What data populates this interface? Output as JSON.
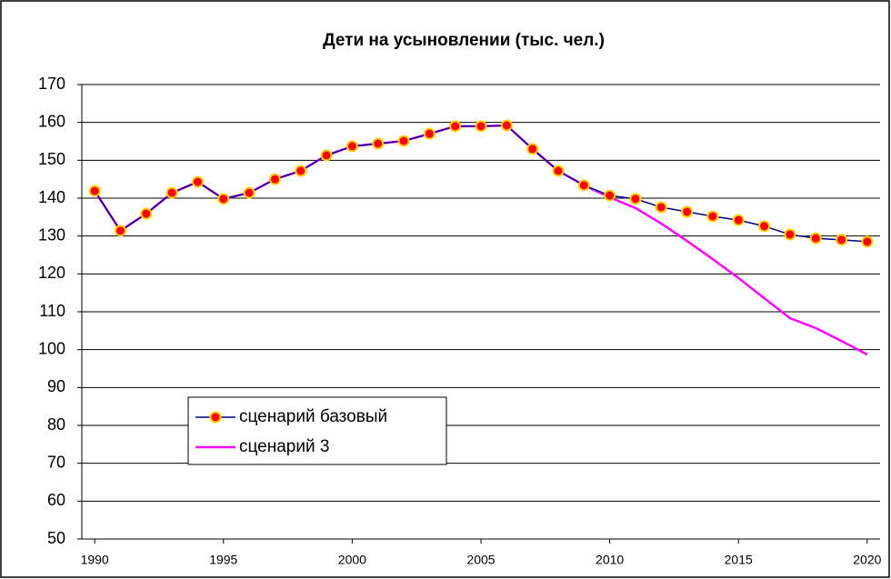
{
  "chart_data": {
    "type": "line",
    "title": "Дети на усыновлении (тыс. чел.)",
    "x": [
      1990,
      1991,
      1992,
      1993,
      1994,
      1995,
      1996,
      1997,
      1998,
      1999,
      2000,
      2001,
      2002,
      2003,
      2004,
      2005,
      2006,
      2007,
      2008,
      2009,
      2010,
      2011,
      2012,
      2013,
      2014,
      2015,
      2016,
      2017,
      2018,
      2019,
      2020
    ],
    "series": [
      {
        "name": "сценарий 3",
        "color": "#ff00ff",
        "values": [
          141.9,
          131.4,
          135.9,
          141.4,
          144.3,
          139.8,
          141.4,
          145,
          147.2,
          151.3,
          153.7,
          154.4,
          155.1,
          157,
          159,
          159,
          159.2,
          153,
          147.2,
          143.4,
          140.2,
          137.4,
          133.3,
          128.7,
          123.9,
          118.9,
          113.6,
          108.3,
          105.7,
          102.3,
          98.7
        ]
      },
      {
        "name": "сценарий базовый",
        "color": "#000080",
        "marker_color": "#ff0000",
        "marker_edge_color": "#ffcc00",
        "values": [
          141.9,
          131.4,
          135.9,
          141.4,
          144.3,
          139.8,
          141.4,
          145,
          147.2,
          151.3,
          153.7,
          154.4,
          155.1,
          157,
          159,
          159,
          159.2,
          153,
          147.2,
          143.4,
          140.7,
          139.8,
          137.6,
          136.4,
          135.2,
          134.2,
          132.6,
          130.4,
          129.4,
          129,
          128.5
        ]
      }
    ],
    "xlim": [
      1989.5,
      2020.5
    ],
    "xticks": [
      1990,
      1995,
      2000,
      2005,
      2010,
      2015,
      2020
    ],
    "ylim": [
      50,
      170
    ],
    "yticks": [
      50,
      60,
      70,
      80,
      90,
      100,
      110,
      120,
      130,
      140,
      150,
      160,
      170
    ],
    "grid": true,
    "legend": "lower left"
  }
}
